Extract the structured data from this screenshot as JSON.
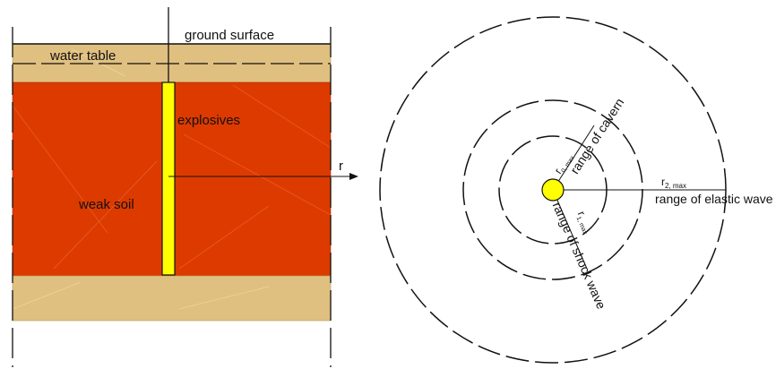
{
  "left_panel": {
    "ground_surface": "ground surface",
    "water_table": "water table",
    "explosives": "explosives",
    "weak_soil": "weak soil",
    "r_axis": "r"
  },
  "right_panel": {
    "r0_label": "r",
    "r0_sub": "0, max",
    "cavern_label": "range of cavern",
    "r1_label": "r",
    "r1_sub": "1, max",
    "shock_label": "range of shock wave",
    "r2_label": "r",
    "r2_sub": "2, max",
    "elastic_label": "range of elastic wave"
  },
  "colors": {
    "soil_layer": "#e0c080",
    "weak_soil": "#dd3a00",
    "explosive": "#ffff00",
    "lines": "#111111"
  }
}
